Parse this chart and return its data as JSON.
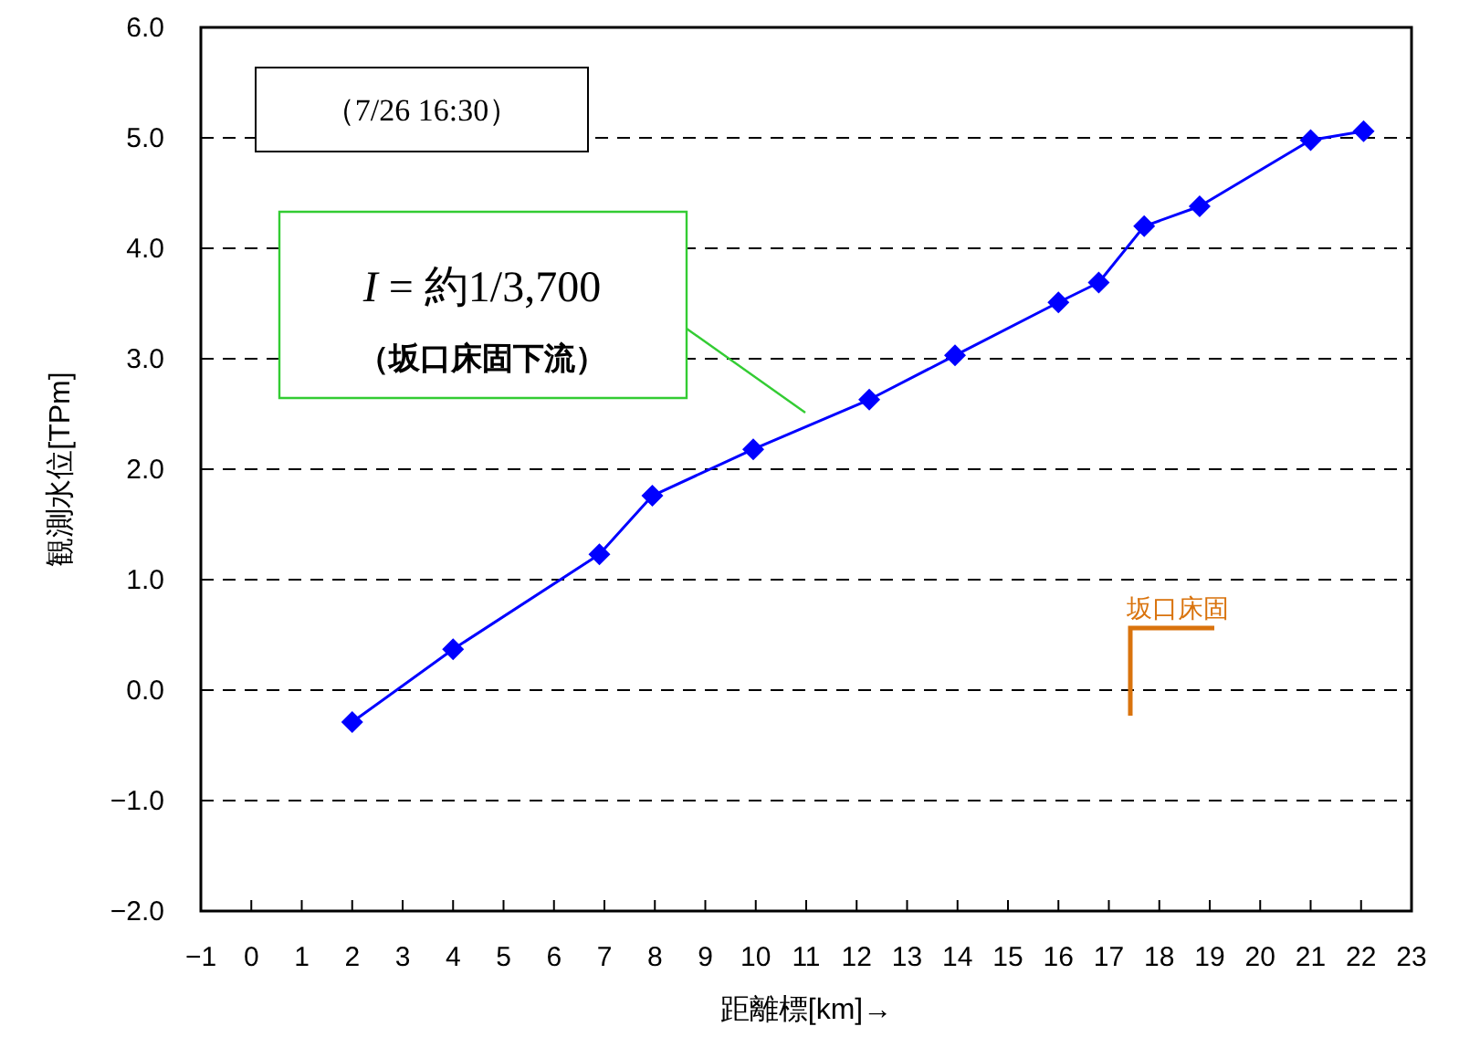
{
  "chart_data": {
    "type": "line",
    "xlabel": "距離標[km]→",
    "ylabel": "観測水位[TPm]",
    "x": [
      2,
      4,
      6.9,
      7.95,
      9.95,
      12.25,
      13.95,
      16,
      16.8,
      17.7,
      18.8,
      21,
      22.05
    ],
    "series": [
      {
        "color": "#0000ff",
        "values": [
          -0.29,
          0.37,
          1.23,
          1.76,
          2.18,
          2.63,
          3.03,
          3.51,
          3.69,
          4.2,
          4.38,
          4.98,
          5.06
        ]
      }
    ],
    "marker": "diamond",
    "line_style": "solid",
    "grid": "y",
    "xlim": [
      -1,
      23
    ],
    "xticks": [
      {
        "value": -1,
        "label": "−1"
      },
      0,
      1,
      2,
      3,
      4,
      5,
      6,
      7,
      8,
      9,
      10,
      11,
      12,
      13,
      14,
      15,
      16,
      17,
      18,
      19,
      20,
      21,
      22,
      23
    ],
    "ylim": [
      -2,
      6
    ],
    "yticks": [
      {
        "value": -2,
        "label": "−2.0"
      },
      {
        "value": -1,
        "label": "−1.0"
      },
      {
        "value": 0,
        "label": "0.0"
      },
      {
        "value": 1,
        "label": "1.0"
      },
      {
        "value": 2,
        "label": "2.0"
      },
      {
        "value": 3,
        "label": "3.0"
      },
      {
        "value": 4,
        "label": "4.0"
      },
      {
        "value": 5,
        "label": "5.0"
      },
      {
        "value": 6,
        "label": "6.0"
      }
    ],
    "annotations": [
      "（7/26 16:30）",
      "I = 約1/3,700\n（坂口床固下流）",
      "坂口床固"
    ]
  }
}
